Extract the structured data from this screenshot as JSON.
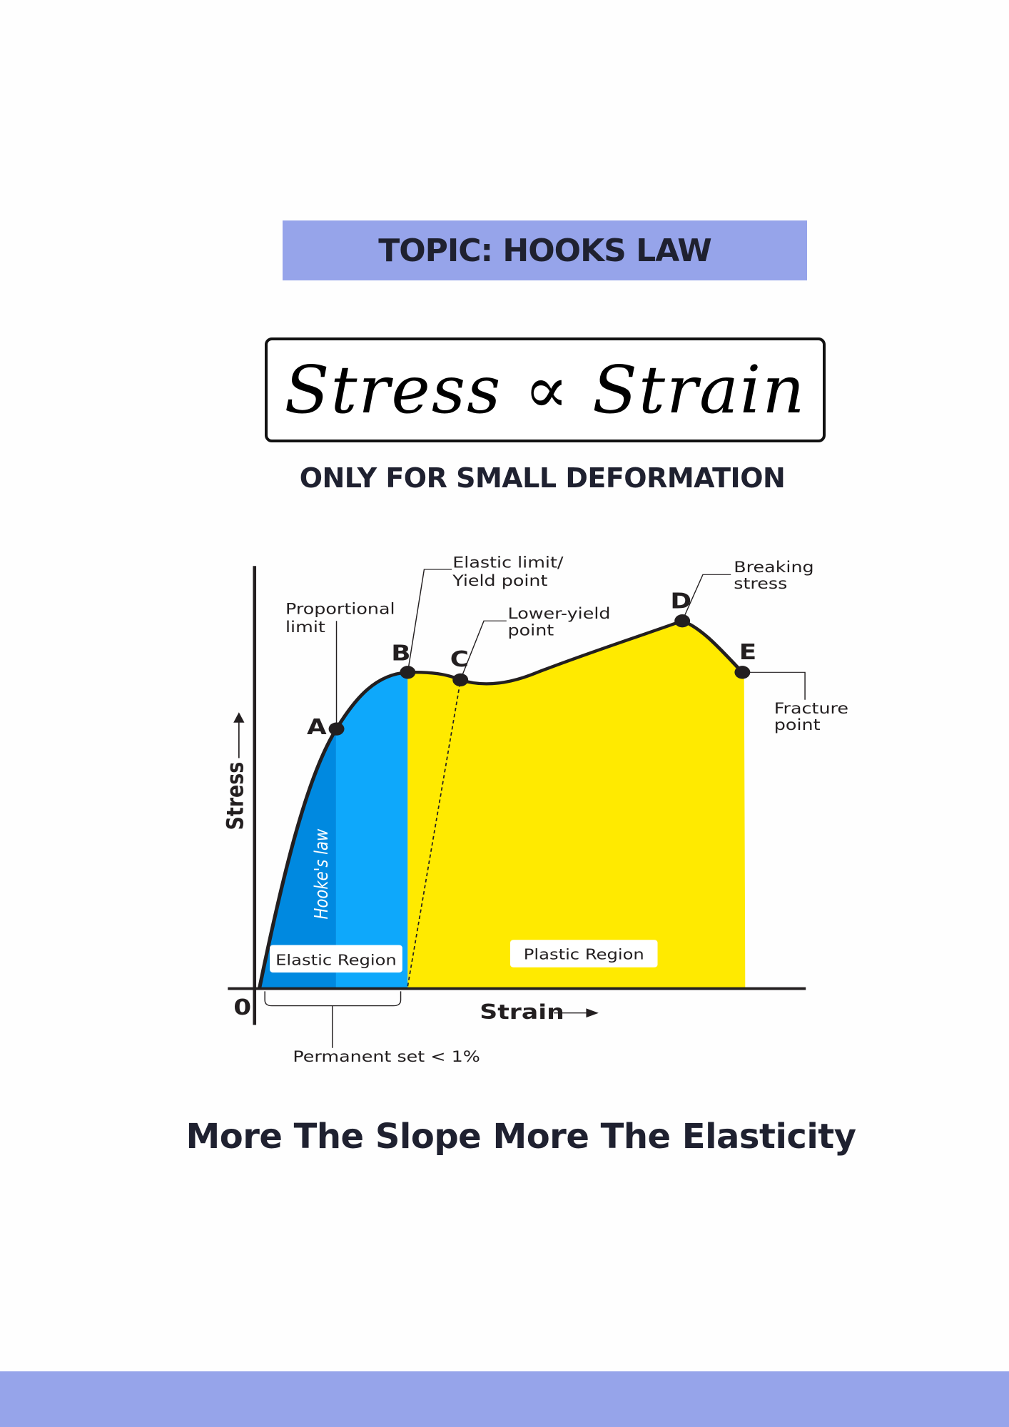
{
  "topic": "TOPIC: HOOKS LAW",
  "formula": "Stress ∝ Strain",
  "note": "ONLY FOR SMALL DEFORMATION",
  "footer_text": "More The Slope More The Elasticity",
  "colors": {
    "banner": "#96a4ea",
    "elastic_dark": "#0089e0",
    "elastic_light": "#0ea8fb",
    "plastic": "#ffea00",
    "curve": "#231f20"
  },
  "diagram": {
    "type": "stress-strain curve",
    "xlabel": "Strain",
    "ylabel": "Stress",
    "origin_label": "0",
    "points": [
      {
        "id": "A",
        "label": "A",
        "annotation": [
          "Proportional",
          "limit"
        ]
      },
      {
        "id": "B",
        "label": "B",
        "annotation": [
          "Elastic limit/",
          "Yield point"
        ]
      },
      {
        "id": "C",
        "label": "C",
        "annotation": [
          "Lower-yield",
          "point"
        ]
      },
      {
        "id": "D",
        "label": "D",
        "annotation": [
          "Breaking",
          "stress"
        ]
      },
      {
        "id": "E",
        "label": "E",
        "annotation": [
          "Fracture",
          "point"
        ]
      }
    ],
    "regions": {
      "hookes": "Hooke's law",
      "elastic": "Elastic Region",
      "plastic": "Plastic Region"
    },
    "permanent_set": "Permanent set < 1%"
  }
}
